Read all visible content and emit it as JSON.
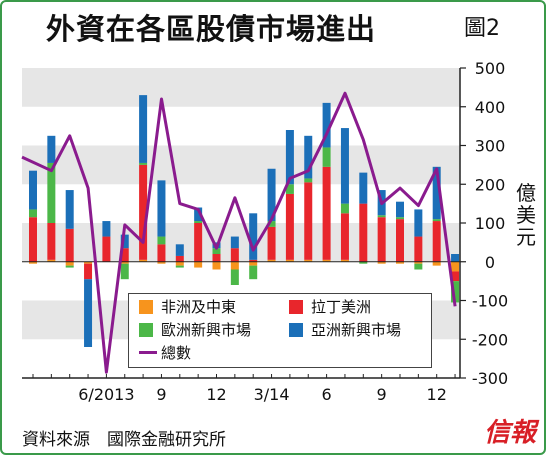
{
  "header": {
    "title": "外資在各區股債市場進出",
    "figure_no": "圖2"
  },
  "source": "資料來源　國際金融研究所",
  "logo_text": "信報",
  "colors": {
    "africa_middle_east": "#f7941d",
    "latin_america": "#e8262c",
    "emerging_europe": "#4cb748",
    "emerging_asia": "#1b6fb8",
    "total": "#8a1b8e",
    "band": "#e6e6e6",
    "frame": "#3a9a4a"
  },
  "chart_data": {
    "type": "bar",
    "stacked": true,
    "ylabel": "億美元",
    "ylim": [
      -300,
      500
    ],
    "yticks": [
      -300,
      -200,
      -100,
      0,
      100,
      200,
      300,
      400,
      500
    ],
    "y_axis_side": "right",
    "grid": "alternating horizontal bands",
    "legend_position": "bottom-center",
    "x_ticks": [
      {
        "index": 4,
        "label": "6/2013"
      },
      {
        "index": 7,
        "label": "9"
      },
      {
        "index": 10,
        "label": "12"
      },
      {
        "index": 13,
        "label": "3/14"
      },
      {
        "index": 16,
        "label": "6"
      },
      {
        "index": 19,
        "label": "9"
      },
      {
        "index": 22,
        "label": "12"
      }
    ],
    "series": [
      {
        "name": "非洲及中東",
        "key": "africa_middle_east",
        "values": [
          -5,
          5,
          -10,
          -5,
          0,
          -5,
          5,
          -5,
          -10,
          -15,
          -20,
          -20,
          -10,
          5,
          5,
          5,
          5,
          5,
          0,
          -5,
          -5,
          -5,
          -10,
          -25
        ]
      },
      {
        "name": "拉丁美洲",
        "key": "latin_america",
        "values": [
          115,
          95,
          85,
          -40,
          65,
          35,
          245,
          45,
          15,
          100,
          20,
          35,
          5,
          85,
          170,
          200,
          240,
          120,
          150,
          115,
          110,
          65,
          105,
          -25
        ]
      },
      {
        "name": "歐洲新興市場",
        "key": "emerging_europe",
        "values": [
          20,
          155,
          -5,
          0,
          0,
          -40,
          5,
          20,
          -5,
          5,
          15,
          -40,
          -35,
          15,
          25,
          10,
          50,
          25,
          -5,
          5,
          5,
          -15,
          5,
          -55
        ]
      },
      {
        "name": "亞洲新興市場",
        "key": "emerging_asia",
        "values": [
          100,
          70,
          100,
          -175,
          40,
          35,
          175,
          145,
          30,
          35,
          15,
          30,
          120,
          135,
          140,
          110,
          115,
          195,
          80,
          65,
          40,
          70,
          135,
          20
        ]
      },
      {
        "name": "總數",
        "key": "total",
        "type": "line",
        "values": [
          270,
          235,
          325,
          190,
          -285,
          95,
          50,
          420,
          150,
          135,
          35,
          165,
          30,
          110,
          215,
          235,
          330,
          435,
          315,
          150,
          190,
          145,
          240,
          -115
        ]
      }
    ]
  },
  "legend": [
    {
      "label": "非洲及中東",
      "key": "africa_middle_east",
      "kind": "box"
    },
    {
      "label": "拉丁美洲",
      "key": "latin_america",
      "kind": "box"
    },
    {
      "label": "歐洲新興市場",
      "key": "emerging_europe",
      "kind": "box"
    },
    {
      "label": "亞洲新興市場",
      "key": "emerging_asia",
      "kind": "box"
    },
    {
      "label": "總數",
      "key": "total",
      "kind": "line"
    }
  ]
}
